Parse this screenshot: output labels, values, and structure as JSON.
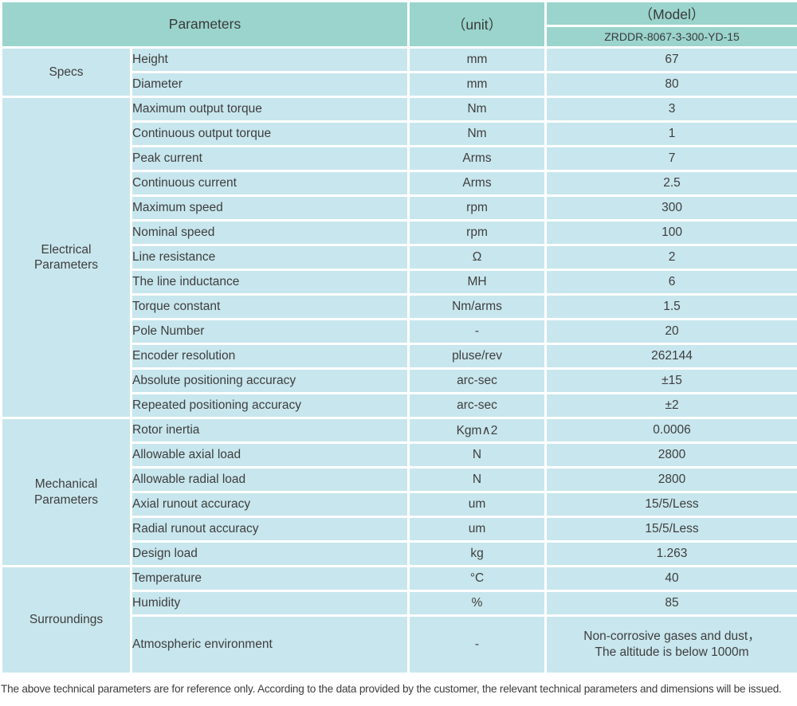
{
  "colors": {
    "header_bg": "#9ad4cc",
    "row_bg": "#c8e6ed",
    "separator": "#ffffff",
    "text": "#3e3e3e"
  },
  "header": {
    "parameters_label": "Parameters",
    "unit_label": "（unit）",
    "model_label": "（Model）",
    "model_number": "ZRDDR-8067-3-300-YD-15"
  },
  "sections": [
    {
      "label": "Specs",
      "rows": [
        [
          "Height",
          "mm",
          "67"
        ],
        [
          "Diameter",
          "mm",
          "80"
        ]
      ]
    },
    {
      "label": "Electrical\nParameters",
      "rows": [
        [
          "Maximum output torque",
          "Nm",
          "3"
        ],
        [
          "Continuous output torque",
          "Nm",
          "1"
        ],
        [
          "Peak current",
          "Arms",
          "7"
        ],
        [
          "Continuous current",
          "Arms",
          "2.5"
        ],
        [
          "Maximum speed",
          "rpm",
          "300"
        ],
        [
          "Nominal speed",
          "rpm",
          "100"
        ],
        [
          "Line resistance",
          "Ω",
          "2"
        ],
        [
          "The line inductance",
          "MH",
          "6"
        ],
        [
          "Torque constant",
          "Nm/arms",
          "1.5"
        ],
        [
          "Pole Number",
          "-",
          "20"
        ],
        [
          "Encoder resolution",
          "pluse/rev",
          "262144"
        ],
        [
          "Absolute positioning accuracy",
          "arc-sec",
          "±15"
        ],
        [
          "Repeated positioning accuracy",
          "arc-sec",
          "±2"
        ]
      ]
    },
    {
      "label": "Mechanical\nParameters",
      "rows": [
        [
          "Rotor inertia",
          "Kgm∧2",
          "0.0006"
        ],
        [
          "Allowable axial load",
          "N",
          "2800"
        ],
        [
          "Allowable radial load",
          "N",
          "2800"
        ],
        [
          "Axial runout accuracy",
          "um",
          "15/5/Less"
        ],
        [
          "Radial runout accuracy",
          "um",
          "15/5/Less"
        ],
        [
          "Design load",
          "kg",
          "1.263"
        ]
      ]
    },
    {
      "label": "Surroundings",
      "rows": [
        [
          "Temperature",
          "°C",
          "40"
        ],
        [
          "Humidity",
          "%",
          "85"
        ],
        [
          "Atmospheric environment",
          "-",
          "Non-corrosive gases and dust，\nThe altitude is below 1000m"
        ]
      ]
    }
  ],
  "footer": {
    "note": "The above technical parameters are for reference only. According to the data provided by the customer, the relevant technical parameters and dimensions will be issued."
  }
}
